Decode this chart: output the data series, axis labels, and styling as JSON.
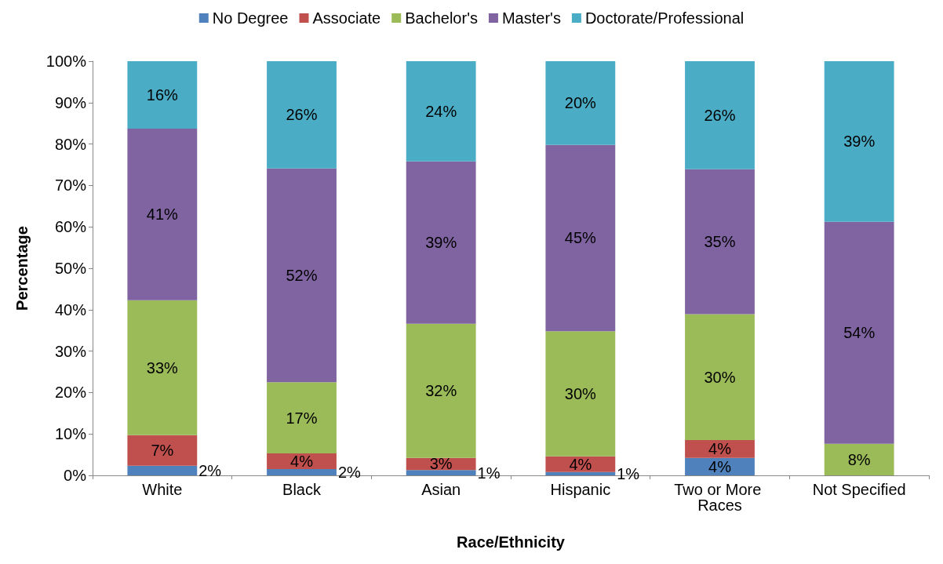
{
  "chart_data": {
    "type": "bar",
    "stacked": true,
    "xlabel": "Race/Ethnicity",
    "ylabel": "Percentage",
    "categories": [
      "White",
      "Black",
      "Asian",
      "Hispanic",
      "Two or More Races",
      "Not Specified"
    ],
    "series": [
      {
        "name": "No Degree",
        "color": "#4f81bd",
        "values": [
          2.3,
          1.5,
          1.3,
          0.8,
          4.2,
          0
        ],
        "value_labels": [
          "2%",
          "2%",
          "1%",
          "1%",
          "4%",
          null
        ]
      },
      {
        "name": "Associate",
        "color": "#c0504d",
        "values": [
          7.4,
          3.8,
          2.9,
          3.8,
          4.3,
          0
        ],
        "value_labels": [
          "7%",
          "4%",
          "3%",
          "4%",
          "4%",
          null
        ]
      },
      {
        "name": "Bachelor's",
        "color": "#9bbb59",
        "values": [
          32.6,
          17.2,
          32.4,
          30.2,
          30.4,
          7.6
        ],
        "value_labels": [
          "33%",
          "17%",
          "32%",
          "30%",
          "30%",
          "8%"
        ]
      },
      {
        "name": "Master's",
        "color": "#8064a2",
        "values": [
          41.4,
          51.6,
          39.2,
          45.0,
          35.0,
          53.6
        ],
        "value_labels": [
          "41%",
          "52%",
          "39%",
          "45%",
          "35%",
          "54%"
        ]
      },
      {
        "name": "Doctorate/Professional",
        "color": "#4bacc6",
        "values": [
          16.3,
          25.9,
          24.2,
          20.2,
          26.1,
          38.8
        ],
        "value_labels": [
          "16%",
          "26%",
          "24%",
          "20%",
          "26%",
          "39%"
        ]
      }
    ],
    "ylim": [
      0,
      100
    ],
    "yticks": [
      {
        "value": 0,
        "label": "0%"
      },
      {
        "value": 10,
        "label": "10%"
      },
      {
        "value": 20,
        "label": "20%"
      },
      {
        "value": 30,
        "label": "30%"
      },
      {
        "value": 40,
        "label": "40%"
      },
      {
        "value": 50,
        "label": "50%"
      },
      {
        "value": 60,
        "label": "60%"
      },
      {
        "value": 70,
        "label": "70%"
      },
      {
        "value": 80,
        "label": "80%"
      },
      {
        "value": 90,
        "label": "90%"
      },
      {
        "value": 100,
        "label": "100%"
      }
    ],
    "legend": "top",
    "grid": false
  }
}
